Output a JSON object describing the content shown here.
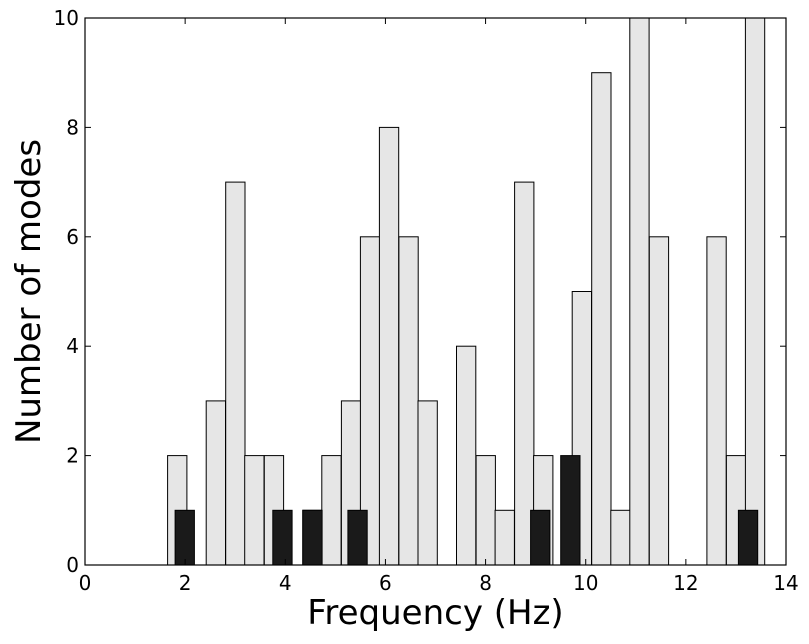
{
  "chart_data": {
    "type": "bar",
    "title": "",
    "xlabel": "Frequency (Hz)",
    "ylabel": "Number of modes",
    "xlim": [
      0,
      14
    ],
    "ylim": [
      0,
      10
    ],
    "xticks": [
      0,
      2,
      4,
      6,
      8,
      10,
      12,
      14
    ],
    "yticks": [
      0,
      2,
      4,
      6,
      8,
      10
    ],
    "grid": false,
    "legend": "none",
    "bin_width": 0.385,
    "series": [
      {
        "color": "#e6e6e6",
        "x": [
          1.65,
          2.42,
          2.81,
          3.19,
          3.58,
          4.35,
          4.73,
          5.12,
          5.5,
          5.88,
          6.27,
          6.65,
          7.42,
          7.81,
          8.19,
          8.58,
          8.96,
          9.73,
          10.12,
          10.5,
          10.88,
          11.27,
          12.42,
          12.81,
          13.19
        ],
        "values": [
          2,
          3,
          7,
          2,
          2,
          1,
          2,
          3,
          6,
          8,
          6,
          3,
          4,
          2,
          1,
          7,
          2,
          5,
          9,
          1,
          10,
          6,
          6,
          2,
          10
        ]
      },
      {
        "color": "#1a1a1a",
        "x": [
          1.8,
          3.75,
          4.35,
          5.25,
          8.9,
          9.5,
          13.05
        ],
        "values": [
          1,
          1,
          1,
          1,
          1,
          2,
          1
        ]
      }
    ]
  }
}
